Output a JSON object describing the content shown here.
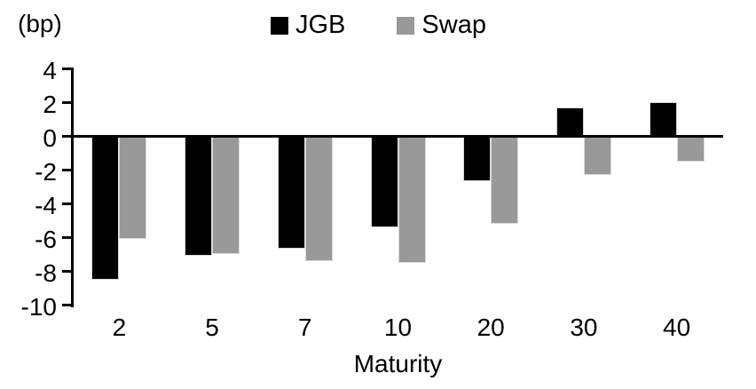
{
  "chart_data": {
    "type": "bar",
    "title": "",
    "unit_label": "(bp)",
    "xlabel": "Maturity",
    "ylabel": "",
    "categories": [
      "2",
      "5",
      "7",
      "10",
      "20",
      "30",
      "40"
    ],
    "series": [
      {
        "name": "JGB",
        "color": "#000000",
        "values": [
          -8.5,
          -7.1,
          -6.7,
          -5.4,
          -2.7,
          1.7,
          2.0
        ]
      },
      {
        "name": "Swap",
        "color": "#999999",
        "values": [
          -6.1,
          -7.0,
          -7.4,
          -7.5,
          -5.2,
          -2.3,
          -1.5
        ]
      }
    ],
    "ylim": [
      -10,
      4
    ],
    "yticks": [
      4,
      2,
      0,
      -2,
      -4,
      -6,
      -8,
      -10
    ],
    "ytick_interval": 2,
    "legend_position": "top-center",
    "grid": false,
    "zero_line": true
  }
}
